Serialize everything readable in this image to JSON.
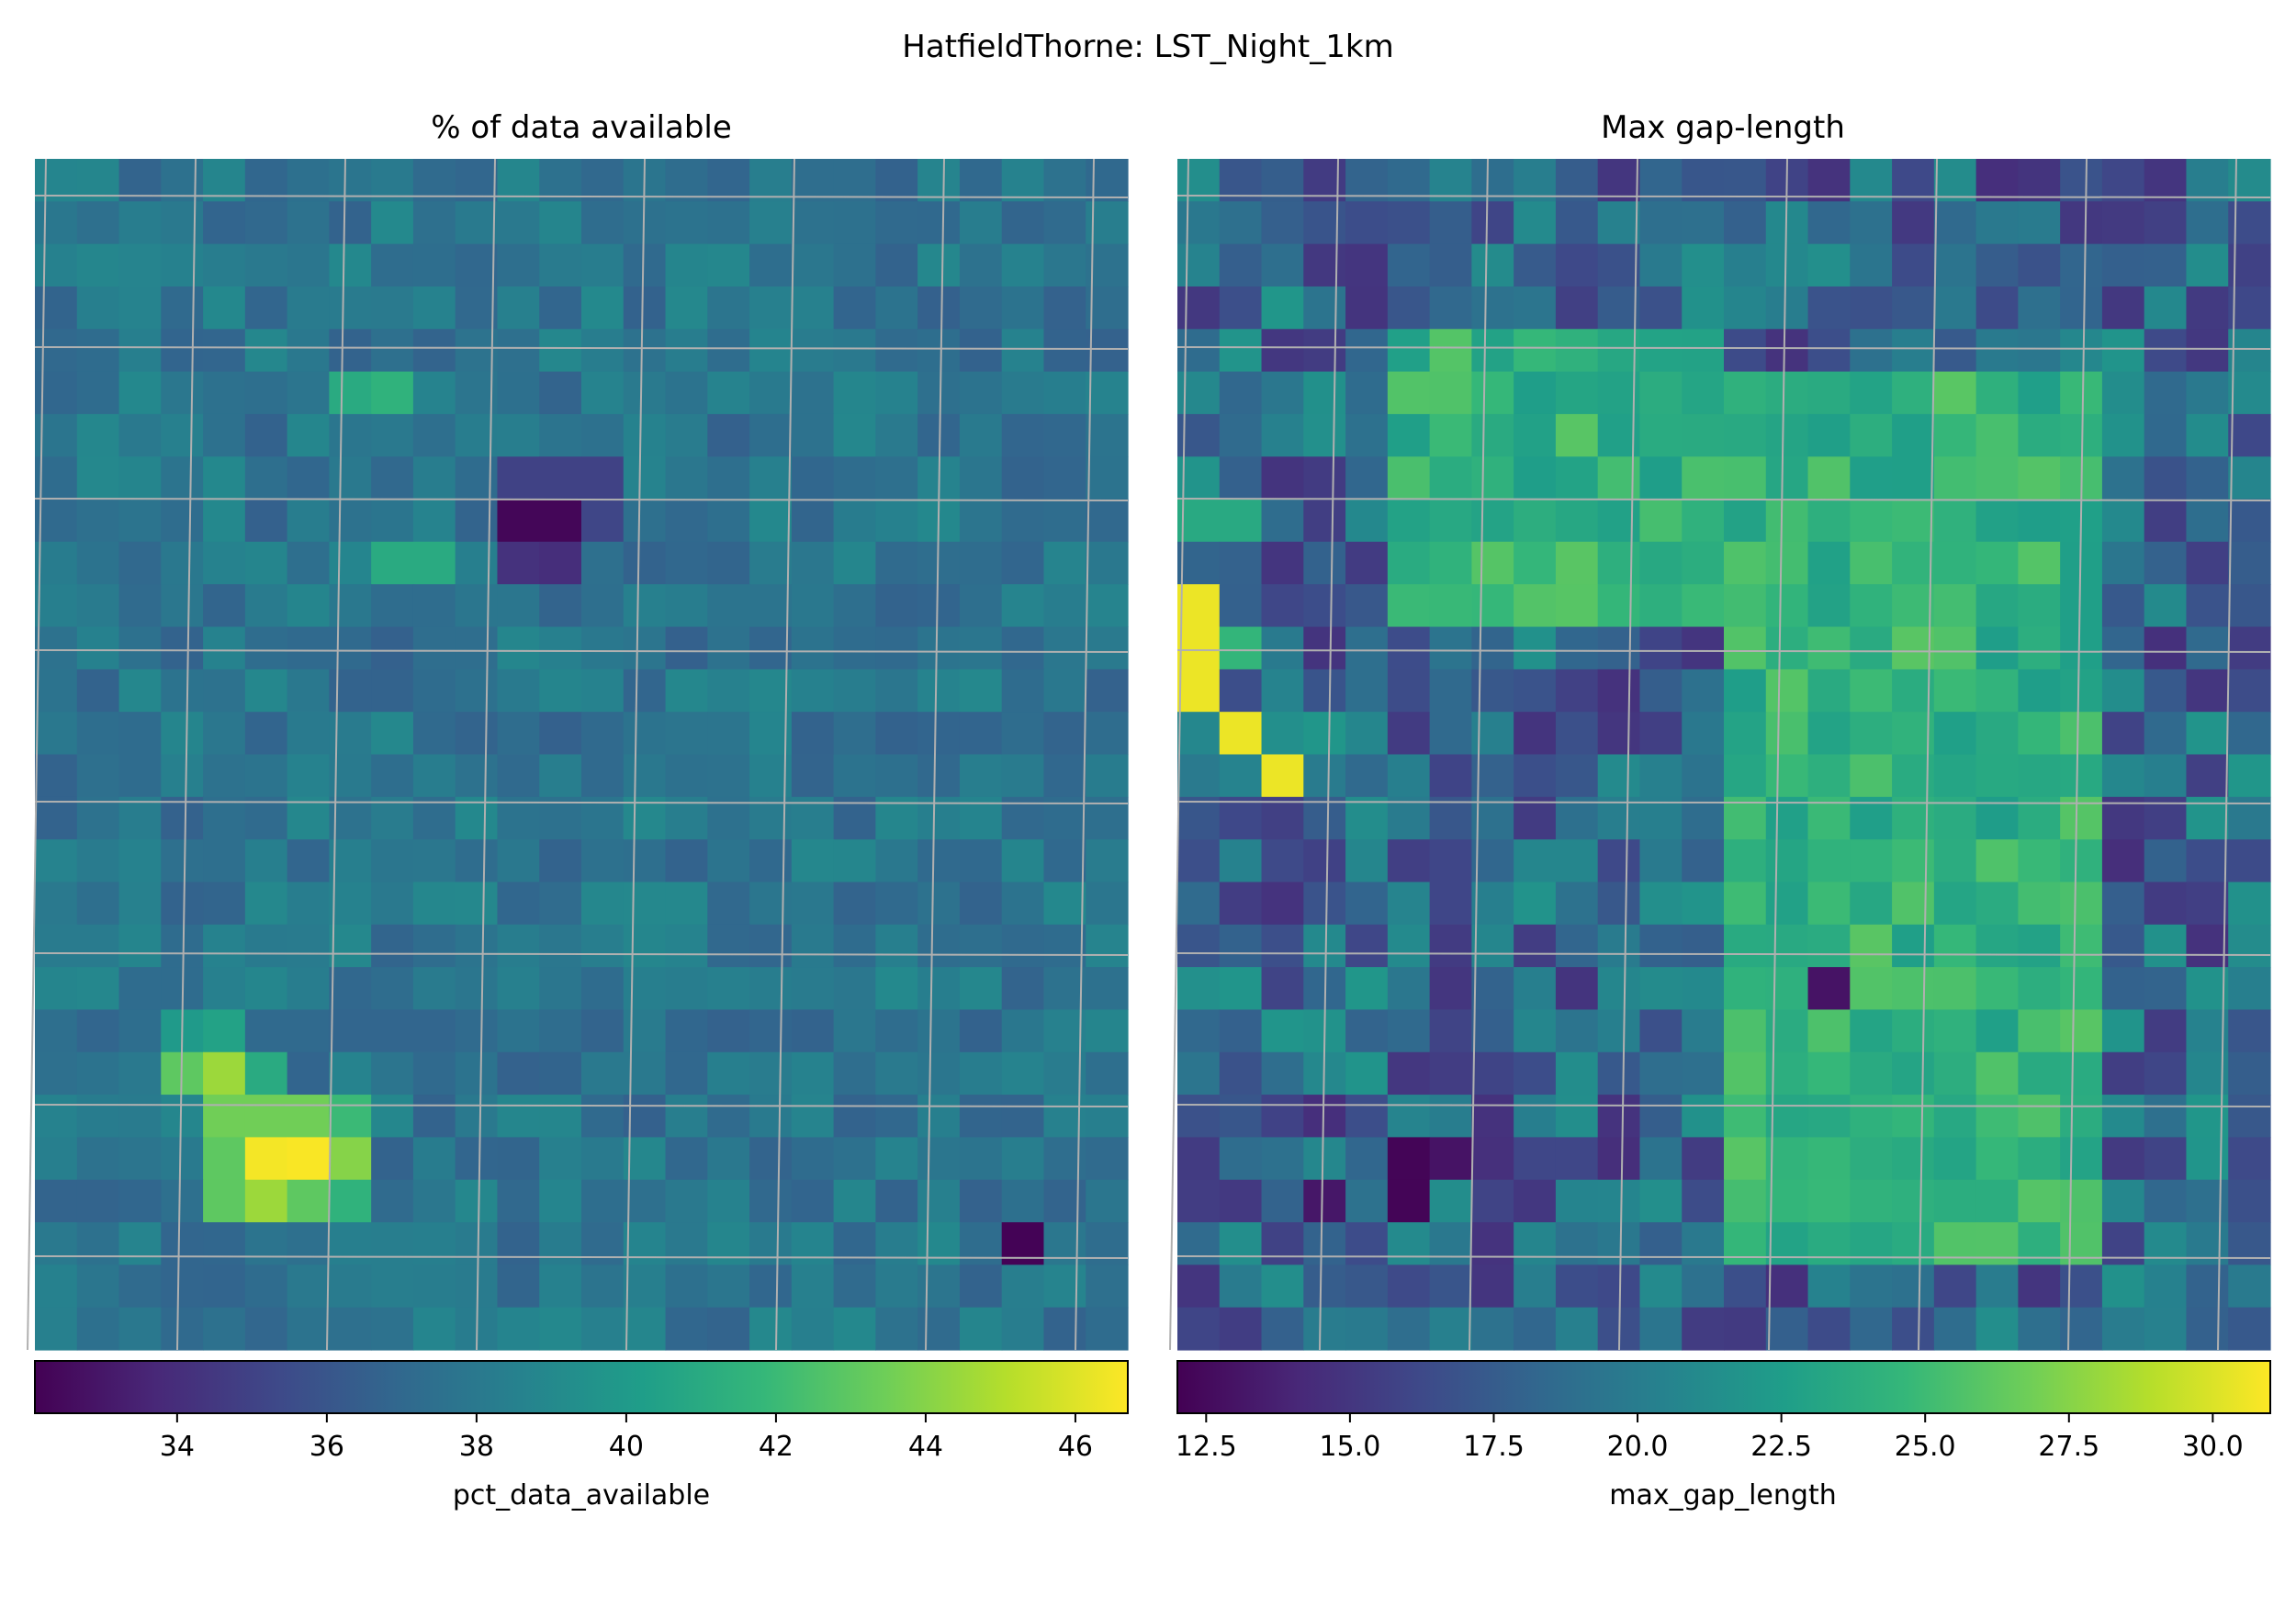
{
  "figure": {
    "suptitle": "HatfieldThorne: LST_Night_1km"
  },
  "colormap": "viridis",
  "chart_data": [
    {
      "type": "heatmap",
      "title": "% of data available",
      "colorbar_label": "pct_data_available",
      "vmin": 32.1,
      "vmax": 46.7,
      "ticks": [
        34,
        36,
        38,
        40,
        42,
        44,
        46
      ],
      "tick_labels": [
        "34",
        "36",
        "38",
        "40",
        "42",
        "44",
        "46"
      ],
      "grid": true,
      "rows": 28,
      "cols": 26,
      "hotspots": [
        {
          "row": 8,
          "col": 11,
          "value": 32.3
        },
        {
          "row": 8,
          "col": 12,
          "value": 32.3
        },
        {
          "row": 9,
          "col": 11,
          "value": 34.2
        },
        {
          "row": 9,
          "col": 12,
          "value": 34.0
        },
        {
          "row": 7,
          "col": 11,
          "value": 35.0
        },
        {
          "row": 7,
          "col": 12,
          "value": 35.0
        },
        {
          "row": 7,
          "col": 13,
          "value": 35.0
        },
        {
          "row": 8,
          "col": 13,
          "value": 35.2
        },
        {
          "row": 5,
          "col": 7,
          "value": 41.0
        },
        {
          "row": 5,
          "col": 8,
          "value": 41.5
        },
        {
          "row": 9,
          "col": 8,
          "value": 41.0
        },
        {
          "row": 9,
          "col": 9,
          "value": 41.0
        },
        {
          "row": 20,
          "col": 3,
          "value": 40.0
        },
        {
          "row": 20,
          "col": 4,
          "value": 40.5
        },
        {
          "row": 21,
          "col": 3,
          "value": 43.0
        },
        {
          "row": 21,
          "col": 4,
          "value": 44.5
        },
        {
          "row": 21,
          "col": 5,
          "value": 41.0
        },
        {
          "row": 22,
          "col": 4,
          "value": 43.5
        },
        {
          "row": 22,
          "col": 5,
          "value": 43.5
        },
        {
          "row": 22,
          "col": 6,
          "value": 43.5
        },
        {
          "row": 22,
          "col": 7,
          "value": 42.0
        },
        {
          "row": 23,
          "col": 4,
          "value": 43.0
        },
        {
          "row": 23,
          "col": 5,
          "value": 46.5
        },
        {
          "row": 23,
          "col": 6,
          "value": 46.6
        },
        {
          "row": 23,
          "col": 7,
          "value": 44.0
        },
        {
          "row": 24,
          "col": 4,
          "value": 43.0
        },
        {
          "row": 24,
          "col": 5,
          "value": 44.5
        },
        {
          "row": 24,
          "col": 6,
          "value": 43.0
        },
        {
          "row": 24,
          "col": 7,
          "value": 41.5
        },
        {
          "row": 25,
          "col": 23,
          "value": 32.2
        }
      ]
    },
    {
      "type": "heatmap",
      "title": "Max gap-length",
      "colorbar_label": "max_gap_length",
      "vmin": 12.0,
      "vmax": 31.0,
      "ticks": [
        12.5,
        15.0,
        17.5,
        20.0,
        22.5,
        25.0,
        27.5,
        30.0
      ],
      "tick_labels": [
        "12.5",
        "15.0",
        "17.5",
        "20.0",
        "22.5",
        "25.0",
        "27.5",
        "30.0"
      ],
      "grid": true,
      "rows": 28,
      "cols": 26,
      "hotspots": [
        {
          "row": 10,
          "col": 0,
          "value": 30.5
        },
        {
          "row": 11,
          "col": 0,
          "value": 30.5
        },
        {
          "row": 12,
          "col": 0,
          "value": 30.5
        },
        {
          "row": 13,
          "col": 1,
          "value": 30.5
        },
        {
          "row": 14,
          "col": 2,
          "value": 30.5
        },
        {
          "row": 8,
          "col": 0,
          "value": 23.5
        },
        {
          "row": 8,
          "col": 1,
          "value": 23.5
        },
        {
          "row": 11,
          "col": 1,
          "value": 24.5
        },
        {
          "row": 24,
          "col": 5,
          "value": 12.2
        },
        {
          "row": 23,
          "col": 5,
          "value": 12.2
        },
        {
          "row": 23,
          "col": 6,
          "value": 13.0
        },
        {
          "row": 24,
          "col": 3,
          "value": 13.2
        },
        {
          "row": 19,
          "col": 15,
          "value": 13.0
        }
      ]
    }
  ]
}
